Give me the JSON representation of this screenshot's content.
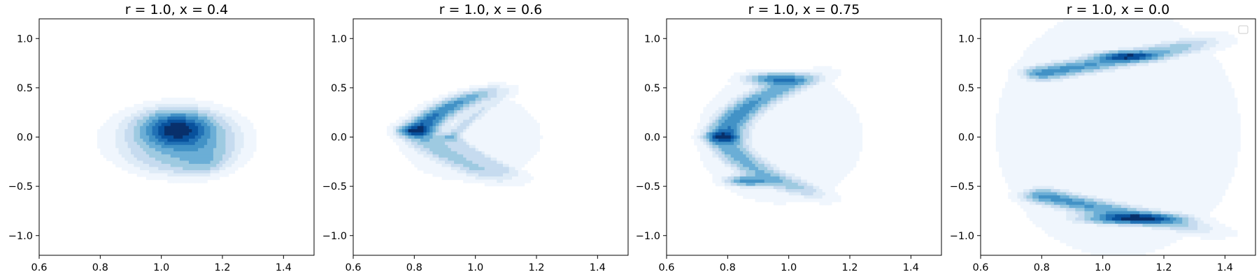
{
  "colors": {
    "blues": [
      "#ffffff",
      "#f0f6fd",
      "#deebf7",
      "#c6dbef",
      "#9ecae1",
      "#6baed6",
      "#4292c6",
      "#2171b5",
      "#08519c",
      "#08306b"
    ],
    "axis": "#000000"
  },
  "chart_data": [
    {
      "type": "heatmap",
      "subtype": "kde-contourf",
      "title": "r = 1.0, x = 0.4",
      "xlim": [
        0.6,
        1.5
      ],
      "ylim": [
        -1.2,
        1.2
      ],
      "xticks": [
        0.6,
        0.8,
        1.0,
        1.2,
        1.4
      ],
      "xtick_labels": [
        "0.6",
        "0.8",
        "1.0",
        "1.2",
        "1.4"
      ],
      "yticks": [
        1.0,
        0.5,
        0.0,
        -0.5,
        -1.0
      ],
      "ytick_labels": [
        "1.0",
        "0.5",
        "0.0",
        "−0.5",
        "−1.0"
      ],
      "levels": 9,
      "density": {
        "base": {
          "cx": 1.05,
          "cy": -0.02,
          "sx": 0.24,
          "sy": 0.36,
          "r": 0.58,
          "f": 0.1,
          "fl": 0.02
        },
        "components": [
          {
            "type": "blob",
            "cx": 1.05,
            "cy": 0.08,
            "sx": 0.07,
            "sy": 0.11,
            "w": 1.0
          },
          {
            "type": "blob",
            "cx": 1.07,
            "cy": -0.08,
            "sx": 0.12,
            "sy": 0.24,
            "w": 0.4
          },
          {
            "type": "blob",
            "cx": 1.15,
            "cy": -0.3,
            "sx": 0.05,
            "sy": 0.14,
            "w": 0.22
          }
        ]
      }
    },
    {
      "type": "heatmap",
      "subtype": "kde-contourf",
      "title": "r = 1.0, x = 0.6",
      "xlim": [
        0.6,
        1.5
      ],
      "ylim": [
        -1.2,
        1.2
      ],
      "xticks": [
        0.6,
        0.8,
        1.0,
        1.2,
        1.4
      ],
      "xtick_labels": [
        "0.6",
        "0.8",
        "1.0",
        "1.2",
        "1.4"
      ],
      "yticks": [
        1.0,
        0.5,
        0.0,
        -0.5,
        -1.0
      ],
      "ytick_labels": [
        "1.0",
        "0.5",
        "0.0",
        "−0.5",
        "−1.0"
      ],
      "levels": 9,
      "density": {
        "base": {
          "cx": 0.98,
          "cy": 0.0,
          "sx": 0.24,
          "sy": 0.46,
          "r": 0.58,
          "f": 0.05,
          "fl": 0.01
        },
        "components": [
          {
            "type": "arc",
            "vx": 0.8,
            "vy": 0.06,
            "p": [
              [
                0.8,
                0.06
              ],
              [
                0.92,
                0.38
              ],
              [
                1.08,
                0.5
              ]
            ],
            "s": 0.035,
            "w": 1.0
          },
          {
            "type": "arc",
            "vx": 0.8,
            "vy": 0.06,
            "p": [
              [
                0.8,
                0.06
              ],
              [
                0.95,
                -0.35
              ],
              [
                1.3,
                -0.6
              ]
            ],
            "s": 0.045,
            "w": 0.45
          },
          {
            "type": "arc",
            "vx": 0.92,
            "vy": 0.0,
            "p": [
              [
                0.92,
                0.0
              ],
              [
                1.05,
                0.4
              ],
              [
                1.2,
                0.6
              ]
            ],
            "s": 0.02,
            "w": 0.22
          },
          {
            "type": "arc",
            "vx": 0.92,
            "vy": 0.0,
            "p": [
              [
                0.92,
                0.0
              ],
              [
                1.05,
                -0.3
              ],
              [
                1.25,
                -0.5
              ]
            ],
            "s": 0.02,
            "w": 0.22
          }
        ]
      }
    },
    {
      "type": "heatmap",
      "subtype": "kde-contourf",
      "title": "r = 1.0, x = 0.75",
      "xlim": [
        0.6,
        1.5
      ],
      "ylim": [
        -1.2,
        1.2
      ],
      "xticks": [
        0.6,
        0.8,
        1.0,
        1.2,
        1.4
      ],
      "xtick_labels": [
        "0.6",
        "0.8",
        "1.0",
        "1.2",
        "1.4"
      ],
      "yticks": [
        1.0,
        0.5,
        0.0,
        -0.5,
        -1.0
      ],
      "ytick_labels": [
        "1.0",
        "0.5",
        "0.0",
        "−0.5",
        "−1.0"
      ],
      "levels": 9,
      "density": {
        "base": {
          "cx": 0.97,
          "cy": 0.0,
          "sx": 0.25,
          "sy": 0.62,
          "r": 0.58,
          "f": 0.05,
          "fl": 0.01
        },
        "components": [
          {
            "type": "arc",
            "vx": 0.78,
            "vy": 0.0,
            "p": [
              [
                0.78,
                0.0
              ],
              [
                0.85,
                0.52
              ],
              [
                1.3,
                0.78
              ]
            ],
            "s": 0.04,
            "w": 0.45
          },
          {
            "type": "arc",
            "vx": 0.78,
            "vy": 0.0,
            "p": [
              [
                0.78,
                0.0
              ],
              [
                0.85,
                -0.45
              ],
              [
                1.3,
                -0.75
              ]
            ],
            "s": 0.04,
            "w": 0.32
          },
          {
            "type": "blob",
            "cx": 0.96,
            "cy": 0.6,
            "sx": 0.07,
            "sy": 0.04,
            "w": 0.65
          },
          {
            "type": "blob",
            "cx": 0.86,
            "cy": -0.45,
            "sx": 0.05,
            "sy": 0.035,
            "w": 0.4
          }
        ]
      }
    },
    {
      "type": "heatmap",
      "subtype": "kde-contourf",
      "title": "r = 1.0, x = 0.0",
      "xlim": [
        0.6,
        1.5
      ],
      "ylim": [
        -1.2,
        1.2
      ],
      "xticks": [
        0.6,
        0.8,
        1.0,
        1.2,
        1.4
      ],
      "xtick_labels": [
        "0.6",
        "0.8",
        "1.0",
        "1.2",
        "1.4"
      ],
      "yticks": [
        1.0,
        0.5,
        0.0,
        -0.5,
        -1.0
      ],
      "ytick_labels": [
        "1.0",
        "0.5",
        "0.0",
        "−0.5",
        "−1.0"
      ],
      "levels": 9,
      "legend": {
        "position": "top-right",
        "entries": []
      },
      "density": {
        "base": {
          "cx": 1.05,
          "cy": 0.05,
          "sx": 0.38,
          "sy": 1.2,
          "r": 0.58,
          "f": 0.05,
          "fl": 0.01
        },
        "components": [
          {
            "type": "arc",
            "vx": 0.8,
            "vy": 0.65,
            "p": [
              [
                0.8,
                0.65
              ],
              [
                1.1,
                0.8
              ],
              [
                1.4,
                1.0
              ]
            ],
            "s": 0.045,
            "w": 0.5
          },
          {
            "type": "arc",
            "vx": 0.8,
            "vy": -0.6,
            "p": [
              [
                0.8,
                -0.6
              ],
              [
                1.1,
                -0.8
              ],
              [
                1.45,
                -1.0
              ]
            ],
            "s": 0.045,
            "w": 0.5
          },
          {
            "type": "blob",
            "cx": 1.08,
            "cy": 0.82,
            "sx": 0.06,
            "sy": 0.03,
            "w": 0.55
          },
          {
            "type": "blob",
            "cx": 1.1,
            "cy": -0.83,
            "sx": 0.1,
            "sy": 0.035,
            "w": 0.7
          }
        ]
      }
    }
  ]
}
